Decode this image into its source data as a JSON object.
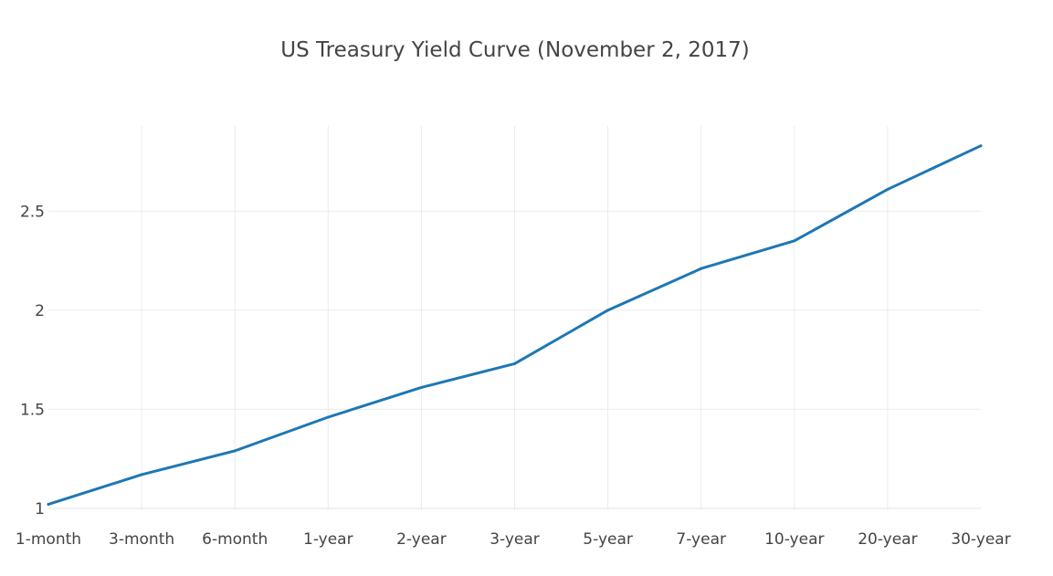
{
  "chart_data": {
    "type": "line",
    "title": "US Treasury Yield Curve (November 2, 2017)",
    "xlabel": "",
    "ylabel": "",
    "categories": [
      "1-month",
      "3-month",
      "6-month",
      "1-year",
      "2-year",
      "3-year",
      "5-year",
      "7-year",
      "10-year",
      "20-year",
      "30-year"
    ],
    "series": [
      {
        "values": [
          1.02,
          1.17,
          1.29,
          1.46,
          1.61,
          1.73,
          2.0,
          2.21,
          2.35,
          2.61,
          2.83
        ],
        "color": "#1f77b4"
      }
    ],
    "ylim": [
      0.99,
      2.93
    ],
    "yticks": [
      1,
      1.5,
      2,
      2.5
    ],
    "ytick_labels": [
      "1",
      "1.5",
      "2",
      "2.5"
    ],
    "grid": true,
    "legend": "none"
  }
}
